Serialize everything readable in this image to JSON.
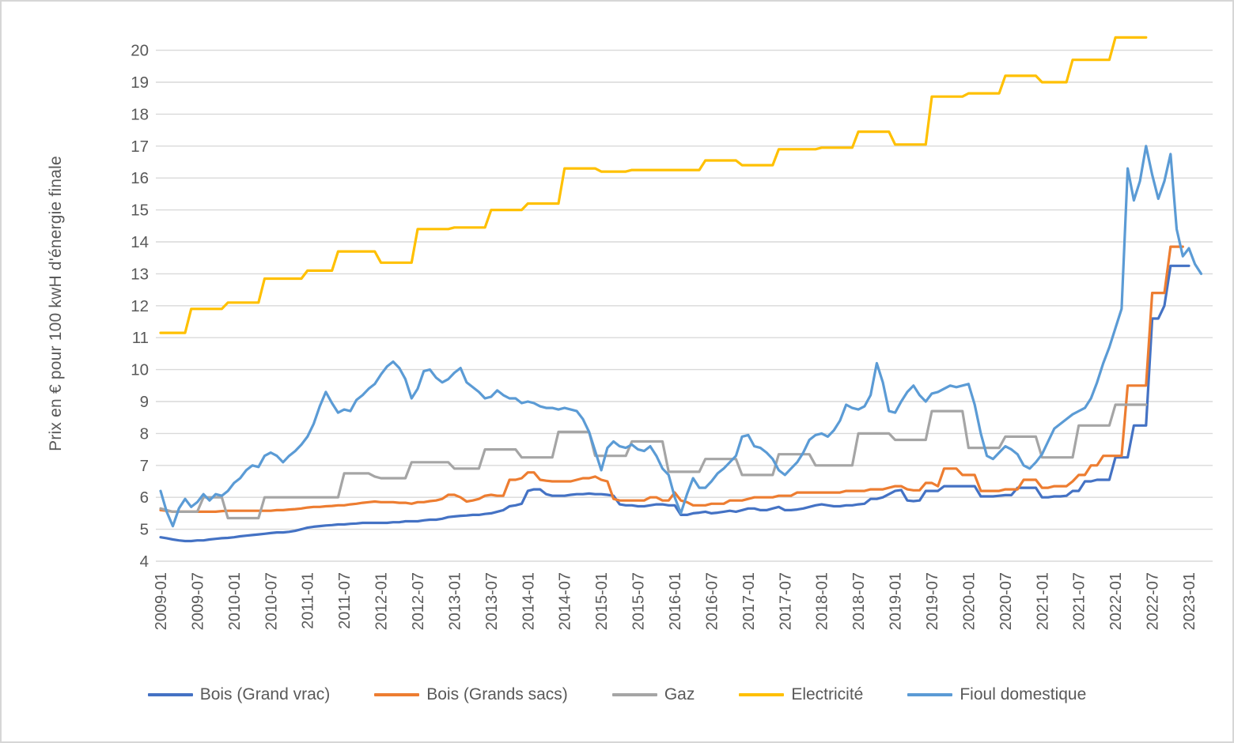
{
  "chart_data": {
    "type": "line",
    "title": "",
    "xlabel": "",
    "ylabel": "Prix en € pour 100 kwH d'énergie finale",
    "ylim": [
      4,
      20.5
    ],
    "yticks": [
      4,
      5,
      6,
      7,
      8,
      9,
      10,
      11,
      12,
      13,
      14,
      15,
      16,
      17,
      18,
      19,
      20
    ],
    "grid": "horizontal",
    "gridline_color": "#d9d9d9",
    "text_color": "#595959",
    "legend_position": "bottom",
    "x_start": "2009-01",
    "x_end": "2023-03",
    "x_step_months": 1,
    "x_tick_labels": [
      "2009-01",
      "2009-07",
      "2010-01",
      "2010-07",
      "2011-01",
      "2011-07",
      "2012-01",
      "2012-07",
      "2013-01",
      "2013-07",
      "2014-01",
      "2014-07",
      "2015-01",
      "2015-07",
      "2016-01",
      "2016-07",
      "2017-01",
      "2017-07",
      "2018-01",
      "2018-07",
      "2019-01",
      "2019-07",
      "2020-01",
      "2020-07",
      "2021-01",
      "2021-07",
      "2022-01",
      "2022-07",
      "2023-01"
    ],
    "series": [
      {
        "name": "Bois (Grand vrac)",
        "color": "#4472C4",
        "values": [
          4.75,
          4.72,
          4.68,
          4.65,
          4.63,
          4.63,
          4.65,
          4.65,
          4.68,
          4.7,
          4.72,
          4.73,
          4.75,
          4.78,
          4.8,
          4.82,
          4.84,
          4.86,
          4.88,
          4.9,
          4.9,
          4.92,
          4.95,
          5.0,
          5.05,
          5.08,
          5.1,
          5.12,
          5.13,
          5.15,
          5.15,
          5.17,
          5.18,
          5.2,
          5.2,
          5.2,
          5.2,
          5.2,
          5.22,
          5.22,
          5.25,
          5.25,
          5.25,
          5.28,
          5.3,
          5.3,
          5.33,
          5.38,
          5.4,
          5.42,
          5.43,
          5.45,
          5.45,
          5.48,
          5.5,
          5.55,
          5.6,
          5.72,
          5.75,
          5.8,
          6.2,
          6.25,
          6.25,
          6.1,
          6.05,
          6.05,
          6.05,
          6.08,
          6.1,
          6.1,
          6.12,
          6.1,
          6.1,
          6.08,
          6.05,
          5.78,
          5.75,
          5.75,
          5.72,
          5.72,
          5.75,
          5.78,
          5.78,
          5.75,
          5.75,
          5.45,
          5.45,
          5.5,
          5.52,
          5.55,
          5.5,
          5.52,
          5.55,
          5.58,
          5.55,
          5.6,
          5.65,
          5.65,
          5.6,
          5.6,
          5.65,
          5.7,
          5.6,
          5.6,
          5.62,
          5.65,
          5.7,
          5.75,
          5.78,
          5.75,
          5.72,
          5.72,
          5.75,
          5.75,
          5.78,
          5.8,
          5.95,
          5.95,
          6.0,
          6.1,
          6.2,
          6.23,
          5.9,
          5.88,
          5.9,
          6.2,
          6.2,
          6.2,
          6.35,
          6.35,
          6.35,
          6.35,
          6.35,
          6.35,
          6.03,
          6.03,
          6.03,
          6.05,
          6.07,
          6.07,
          6.3,
          6.3,
          6.3,
          6.3,
          6.0,
          6.0,
          6.03,
          6.03,
          6.05,
          6.2,
          6.2,
          6.5,
          6.5,
          6.55,
          6.55,
          6.55,
          7.25,
          7.25,
          7.25,
          8.25,
          8.25,
          8.25,
          11.6,
          11.6,
          12.0,
          13.25,
          13.25,
          13.25,
          13.25,
          null,
          null
        ]
      },
      {
        "name": "Bois (Grands sacs)",
        "color": "#ED7D31",
        "values": [
          5.6,
          5.58,
          5.55,
          5.55,
          5.55,
          5.55,
          5.55,
          5.55,
          5.55,
          5.55,
          5.57,
          5.58,
          5.58,
          5.58,
          5.58,
          5.58,
          5.58,
          5.58,
          5.58,
          5.6,
          5.6,
          5.62,
          5.63,
          5.65,
          5.68,
          5.7,
          5.7,
          5.72,
          5.73,
          5.75,
          5.75,
          5.78,
          5.8,
          5.83,
          5.85,
          5.87,
          5.85,
          5.85,
          5.85,
          5.83,
          5.83,
          5.8,
          5.85,
          5.85,
          5.88,
          5.9,
          5.95,
          6.08,
          6.08,
          6.0,
          5.87,
          5.9,
          5.95,
          6.05,
          6.08,
          6.05,
          6.05,
          6.55,
          6.55,
          6.6,
          6.78,
          6.78,
          6.55,
          6.52,
          6.5,
          6.5,
          6.5,
          6.5,
          6.55,
          6.6,
          6.6,
          6.65,
          6.55,
          6.5,
          5.95,
          5.9,
          5.9,
          5.9,
          5.9,
          5.9,
          6.0,
          6.0,
          5.9,
          5.9,
          6.15,
          5.9,
          5.85,
          5.75,
          5.75,
          5.75,
          5.8,
          5.8,
          5.8,
          5.9,
          5.9,
          5.9,
          5.95,
          6.0,
          6.0,
          6.0,
          6.0,
          6.05,
          6.05,
          6.05,
          6.15,
          6.15,
          6.15,
          6.15,
          6.15,
          6.15,
          6.15,
          6.15,
          6.2,
          6.2,
          6.2,
          6.2,
          6.25,
          6.25,
          6.25,
          6.3,
          6.35,
          6.35,
          6.25,
          6.22,
          6.22,
          6.45,
          6.45,
          6.35,
          6.9,
          6.9,
          6.9,
          6.7,
          6.7,
          6.7,
          6.2,
          6.2,
          6.2,
          6.2,
          6.25,
          6.25,
          6.25,
          6.55,
          6.55,
          6.55,
          6.3,
          6.3,
          6.35,
          6.35,
          6.35,
          6.5,
          6.7,
          6.7,
          7.0,
          7.0,
          7.3,
          7.3,
          7.3,
          7.3,
          9.5,
          9.5,
          9.5,
          9.5,
          12.4,
          12.4,
          12.4,
          13.85,
          13.85,
          13.85,
          null,
          null,
          null
        ]
      },
      {
        "name": "Gaz",
        "color": "#A5A5A5",
        "values": [
          5.65,
          5.6,
          5.55,
          5.55,
          5.55,
          5.55,
          5.55,
          6.0,
          6.0,
          6.0,
          6.0,
          5.35,
          5.35,
          5.35,
          5.35,
          5.35,
          5.35,
          6.0,
          6.0,
          6.0,
          6.0,
          6.0,
          6.0,
          6.0,
          6.0,
          6.0,
          6.0,
          6.0,
          6.0,
          6.0,
          6.75,
          6.75,
          6.75,
          6.75,
          6.75,
          6.65,
          6.6,
          6.6,
          6.6,
          6.6,
          6.6,
          7.1,
          7.1,
          7.1,
          7.1,
          7.1,
          7.1,
          7.1,
          6.9,
          6.9,
          6.9,
          6.9,
          6.9,
          7.5,
          7.5,
          7.5,
          7.5,
          7.5,
          7.5,
          7.25,
          7.25,
          7.25,
          7.25,
          7.25,
          7.25,
          8.05,
          8.05,
          8.05,
          8.05,
          8.05,
          8.05,
          7.3,
          7.3,
          7.3,
          7.3,
          7.3,
          7.3,
          7.75,
          7.75,
          7.75,
          7.75,
          7.75,
          7.75,
          6.8,
          6.8,
          6.8,
          6.8,
          6.8,
          6.8,
          7.2,
          7.2,
          7.2,
          7.2,
          7.2,
          7.2,
          6.7,
          6.7,
          6.7,
          6.7,
          6.7,
          6.7,
          7.35,
          7.35,
          7.35,
          7.35,
          7.35,
          7.35,
          7.0,
          7.0,
          7.0,
          7.0,
          7.0,
          7.0,
          7.0,
          8.0,
          8.0,
          8.0,
          8.0,
          8.0,
          8.0,
          7.8,
          7.8,
          7.8,
          7.8,
          7.8,
          7.8,
          8.7,
          8.7,
          8.7,
          8.7,
          8.7,
          8.7,
          7.55,
          7.55,
          7.55,
          7.55,
          7.55,
          7.55,
          7.9,
          7.9,
          7.9,
          7.9,
          7.9,
          7.9,
          7.25,
          7.25,
          7.25,
          7.25,
          7.25,
          7.25,
          8.25,
          8.25,
          8.25,
          8.25,
          8.25,
          8.25,
          8.9,
          8.9,
          8.9,
          8.9,
          8.9,
          8.9,
          null,
          null,
          null,
          null,
          null,
          null,
          null,
          null,
          null
        ]
      },
      {
        "name": "Electricité",
        "color": "#FFC000",
        "values": [
          11.15,
          11.15,
          11.15,
          11.15,
          11.15,
          11.9,
          11.9,
          11.9,
          11.9,
          11.9,
          11.9,
          12.1,
          12.1,
          12.1,
          12.1,
          12.1,
          12.1,
          12.85,
          12.85,
          12.85,
          12.85,
          12.85,
          12.85,
          12.85,
          13.1,
          13.1,
          13.1,
          13.1,
          13.1,
          13.7,
          13.7,
          13.7,
          13.7,
          13.7,
          13.7,
          13.7,
          13.35,
          13.35,
          13.35,
          13.35,
          13.35,
          13.35,
          14.4,
          14.4,
          14.4,
          14.4,
          14.4,
          14.4,
          14.45,
          14.45,
          14.45,
          14.45,
          14.45,
          14.45,
          15.0,
          15.0,
          15.0,
          15.0,
          15.0,
          15.0,
          15.2,
          15.2,
          15.2,
          15.2,
          15.2,
          15.2,
          16.3,
          16.3,
          16.3,
          16.3,
          16.3,
          16.3,
          16.2,
          16.2,
          16.2,
          16.2,
          16.2,
          16.25,
          16.25,
          16.25,
          16.25,
          16.25,
          16.25,
          16.25,
          16.25,
          16.25,
          16.25,
          16.25,
          16.25,
          16.55,
          16.55,
          16.55,
          16.55,
          16.55,
          16.55,
          16.4,
          16.4,
          16.4,
          16.4,
          16.4,
          16.4,
          16.9,
          16.9,
          16.9,
          16.9,
          16.9,
          16.9,
          16.9,
          16.95,
          16.95,
          16.95,
          16.95,
          16.95,
          16.95,
          17.45,
          17.45,
          17.45,
          17.45,
          17.45,
          17.45,
          17.05,
          17.05,
          17.05,
          17.05,
          17.05,
          17.05,
          18.55,
          18.55,
          18.55,
          18.55,
          18.55,
          18.55,
          18.65,
          18.65,
          18.65,
          18.65,
          18.65,
          18.65,
          19.2,
          19.2,
          19.2,
          19.2,
          19.2,
          19.2,
          19.0,
          19.0,
          19.0,
          19.0,
          19.0,
          19.7,
          19.7,
          19.7,
          19.7,
          19.7,
          19.7,
          19.7,
          20.4,
          20.4,
          20.4,
          20.4,
          20.4,
          20.4,
          null,
          null,
          null,
          null,
          null,
          null,
          null,
          null,
          null
        ]
      },
      {
        "name": "Fioul domestique",
        "color": "#5B9BD5",
        "values": [
          6.2,
          5.55,
          5.1,
          5.65,
          5.95,
          5.7,
          5.85,
          6.1,
          5.9,
          6.1,
          6.05,
          6.2,
          6.45,
          6.6,
          6.85,
          7.0,
          6.95,
          7.3,
          7.4,
          7.3,
          7.1,
          7.3,
          7.45,
          7.65,
          7.9,
          8.3,
          8.85,
          9.3,
          8.95,
          8.65,
          8.75,
          8.7,
          9.05,
          9.2,
          9.4,
          9.55,
          9.85,
          10.1,
          10.25,
          10.05,
          9.7,
          9.1,
          9.4,
          9.95,
          10.0,
          9.75,
          9.6,
          9.7,
          9.9,
          10.05,
          9.6,
          9.45,
          9.3,
          9.1,
          9.15,
          9.35,
          9.2,
          9.1,
          9.1,
          8.95,
          9.0,
          8.95,
          8.85,
          8.8,
          8.8,
          8.75,
          8.8,
          8.75,
          8.7,
          8.45,
          8.05,
          7.45,
          6.85,
          7.55,
          7.75,
          7.6,
          7.55,
          7.65,
          7.5,
          7.45,
          7.6,
          7.3,
          6.9,
          6.7,
          6.0,
          5.5,
          6.1,
          6.6,
          6.3,
          6.3,
          6.5,
          6.75,
          6.9,
          7.1,
          7.3,
          7.9,
          7.95,
          7.6,
          7.55,
          7.4,
          7.2,
          6.85,
          6.7,
          6.9,
          7.1,
          7.4,
          7.8,
          7.95,
          8.0,
          7.9,
          8.1,
          8.4,
          8.9,
          8.8,
          8.75,
          8.85,
          9.2,
          10.2,
          9.6,
          8.7,
          8.65,
          9.0,
          9.3,
          9.5,
          9.2,
          9.0,
          9.25,
          9.3,
          9.4,
          9.5,
          9.45,
          9.5,
          9.55,
          8.9,
          8.0,
          7.3,
          7.2,
          7.4,
          7.6,
          7.5,
          7.35,
          7.0,
          6.9,
          7.1,
          7.35,
          7.75,
          8.15,
          8.3,
          8.45,
          8.6,
          8.7,
          8.8,
          9.1,
          9.6,
          10.2,
          10.7,
          11.3,
          11.9,
          16.3,
          15.3,
          15.9,
          17.0,
          16.1,
          15.35,
          15.9,
          16.75,
          14.4,
          13.55,
          13.8,
          13.3,
          13.0
        ]
      }
    ]
  }
}
